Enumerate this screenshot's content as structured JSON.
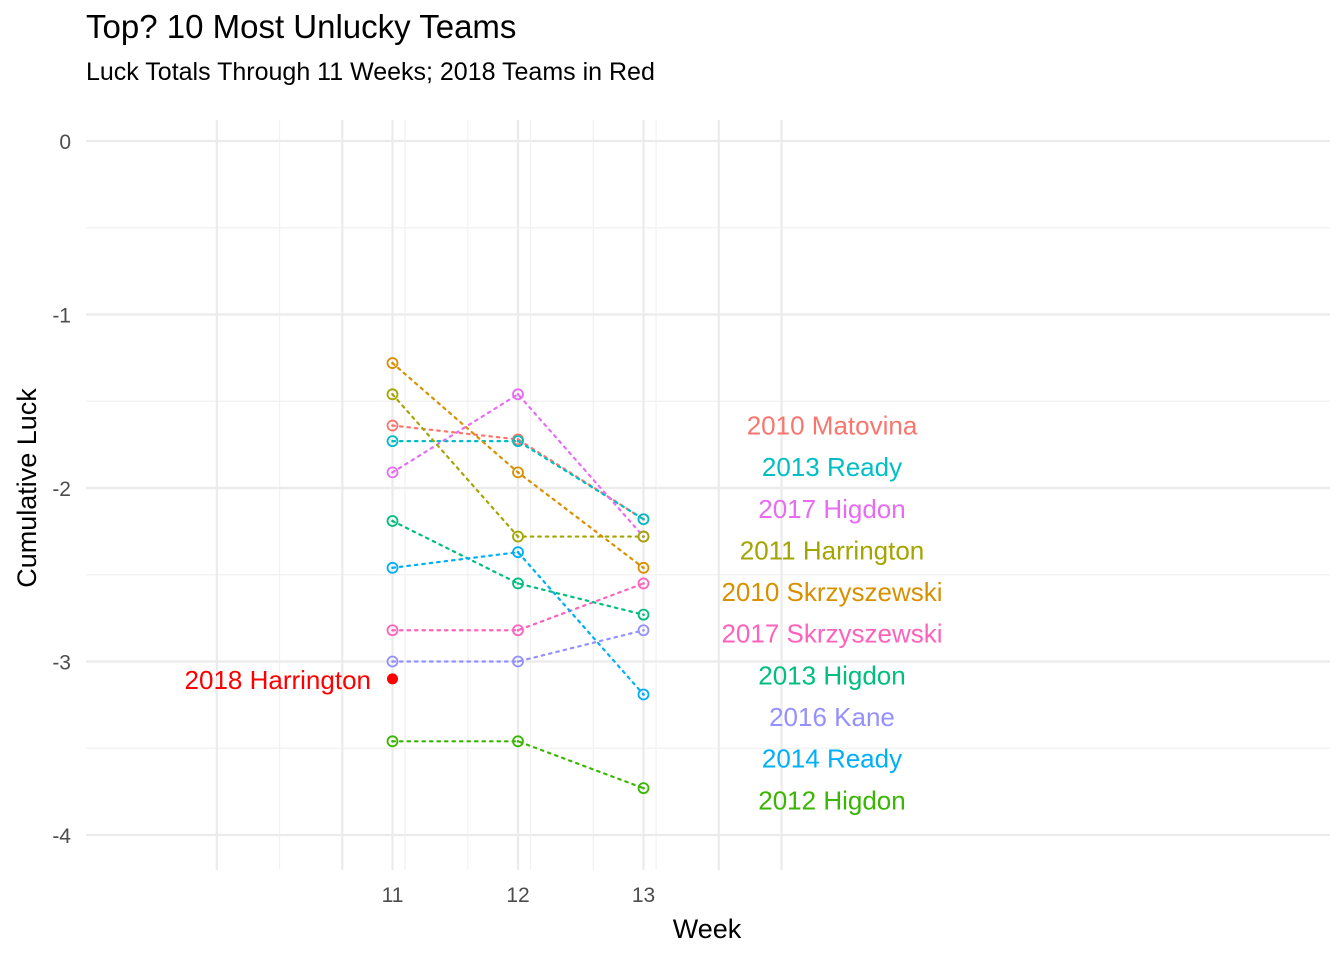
{
  "chart_data": {
    "type": "line",
    "title": "Top? 10 Most Unlucky Teams",
    "subtitle": "Luck Totals Through 11 Weeks; 2018 Teams in Red",
    "xlabel": "Week",
    "ylabel": "Cumulative Luck",
    "x": [
      11,
      12,
      13
    ],
    "xticks": [
      "11",
      "12",
      "13"
    ],
    "yticks": [
      "0",
      "-1",
      "-2",
      "-3",
      "-4"
    ],
    "ylim": [
      -4.2,
      0.1
    ],
    "grid": true,
    "line_style": "dotted",
    "series": [
      {
        "name": "2010 Matovina",
        "color": "#F8766D",
        "values": [
          -1.64,
          -1.72,
          -2.18
        ]
      },
      {
        "name": "2013 Ready",
        "color": "#00BFC4",
        "values": [
          -1.73,
          -1.73,
          -2.18
        ]
      },
      {
        "name": "2017 Higdon",
        "color": "#E76BF3",
        "values": [
          -1.91,
          -1.46,
          -2.28
        ]
      },
      {
        "name": "2011 Harrington",
        "color": "#A3A500",
        "values": [
          -1.46,
          -2.28,
          -2.28
        ]
      },
      {
        "name": "2010 Skrzyszewski",
        "color": "#D89000",
        "values": [
          -1.28,
          -1.91,
          -2.46
        ]
      },
      {
        "name": "2017 Skrzyszewski",
        "color": "#FF62BC",
        "values": [
          -2.82,
          -2.82,
          -2.55
        ]
      },
      {
        "name": "2013 Higdon",
        "color": "#00BF7D",
        "values": [
          -2.19,
          -2.55,
          -2.73
        ]
      },
      {
        "name": "2016 Kane",
        "color": "#9590FF",
        "values": [
          -3.0,
          -3.0,
          -2.82
        ]
      },
      {
        "name": "2014 Ready",
        "color": "#00B0F6",
        "values": [
          -2.46,
          -2.37,
          -3.19
        ]
      },
      {
        "name": "2012 Higdon",
        "color": "#39B600",
        "values": [
          -3.46,
          -3.46,
          -3.73
        ]
      }
    ],
    "highlight": {
      "name": "2018 Harrington",
      "color": "#FF0000",
      "x": 11,
      "y": -3.1
    },
    "labels": [
      {
        "text": "2010 Matovina",
        "color": "#F8766D",
        "y": -1.64
      },
      {
        "text": "2013 Ready",
        "color": "#00BFC4",
        "y": -1.88
      },
      {
        "text": "2017 Higdon",
        "color": "#E76BF3",
        "y": -2.12
      },
      {
        "text": "2011 Harrington",
        "color": "#A3A500",
        "y": -2.36
      },
      {
        "text": "2010 Skrzyszewski",
        "color": "#D89000",
        "y": -2.6
      },
      {
        "text": "2017 Skrzyszewski",
        "color": "#FF62BC",
        "y": -2.84
      },
      {
        "text": "2013 Higdon",
        "color": "#00BF7D",
        "y": -3.08
      },
      {
        "text": "2016 Kane",
        "color": "#9590FF",
        "y": -3.32
      },
      {
        "text": "2014 Ready",
        "color": "#00B0F6",
        "y": -3.56
      },
      {
        "text": "2012 Higdon",
        "color": "#39B600",
        "y": -3.8
      }
    ]
  }
}
